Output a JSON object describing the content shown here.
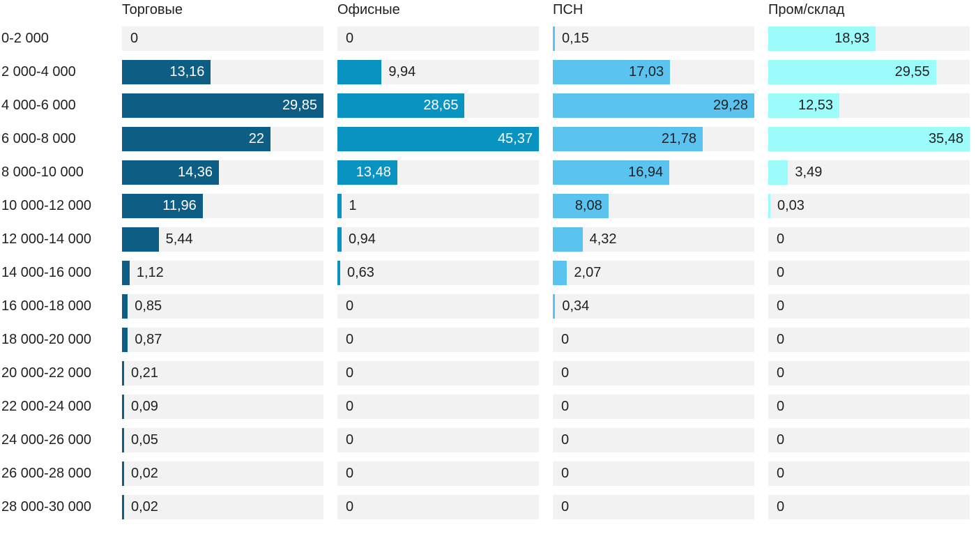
{
  "chart_data": {
    "type": "bar",
    "orientation": "horizontal",
    "title": "",
    "layout": "small multiples: one bar column per series, each column scaled to its own maximum value",
    "grid": false,
    "track_color": "#f2f2f2",
    "text_color": "#212121",
    "background_color": "#ffffff",
    "categories": [
      "0-2 000",
      "2 000-4 000",
      "4 000-6 000",
      "6 000-8 000",
      "8 000-10 000",
      "10 000-12 000",
      "12 000-14 000",
      "14 000-16 000",
      "16 000-18 000",
      "18 000-20 000",
      "20 000-22 000",
      "22 000-24 000",
      "24 000-26 000",
      "26 000-28 000",
      "28 000-30 000"
    ],
    "series": [
      {
        "name": "Торговые",
        "color": "#0d5d85",
        "inside_label_color": "#ffffff",
        "values": [
          0,
          13.16,
          29.85,
          22,
          14.36,
          11.96,
          5.44,
          1.12,
          0.85,
          0.87,
          0.21,
          0.09,
          0.05,
          0.02,
          0.02
        ],
        "labels": [
          "0",
          "13,16",
          "29,85",
          "22",
          "14,36",
          "11,96",
          "5,44",
          "1,12",
          "0,85",
          "0,87",
          "0,21",
          "0,09",
          "0,05",
          "0,02",
          "0,02"
        ]
      },
      {
        "name": "Офисные",
        "color": "#0993c0",
        "inside_label_color": "#ffffff",
        "values": [
          0,
          9.94,
          28.65,
          45.37,
          13.48,
          1,
          0.94,
          0.63,
          0,
          0,
          0,
          0,
          0,
          0,
          0
        ],
        "labels": [
          "0",
          "9,94",
          "28,65",
          "45,37",
          "13,48",
          "1",
          "0,94",
          "0,63",
          "0",
          "0",
          "0",
          "0",
          "0",
          "0",
          "0"
        ]
      },
      {
        "name": "ПСН",
        "color": "#5bc3f0",
        "inside_label_color": "#212121",
        "values": [
          0.15,
          17.03,
          29.28,
          21.78,
          16.94,
          8.08,
          4.32,
          2.07,
          0.34,
          0,
          0,
          0,
          0,
          0,
          0
        ],
        "labels": [
          "0,15",
          "17,03",
          "29,28",
          "21,78",
          "16,94",
          "8,08",
          "4,32",
          "2,07",
          "0,34",
          "0",
          "0",
          "0",
          "0",
          "0",
          "0"
        ]
      },
      {
        "name": "Пром/склад",
        "color": "#9cfcfc",
        "inside_label_color": "#212121",
        "values": [
          18.93,
          29.55,
          12.53,
          35.48,
          3.49,
          0.03,
          0,
          0,
          0,
          0,
          0,
          0,
          0,
          0,
          0
        ],
        "labels": [
          "18,93",
          "29,55",
          "12,53",
          "35,48",
          "3,49",
          "0,03",
          "0",
          "0",
          "0",
          "0",
          "0",
          "0",
          "0",
          "0",
          "0"
        ]
      }
    ]
  }
}
